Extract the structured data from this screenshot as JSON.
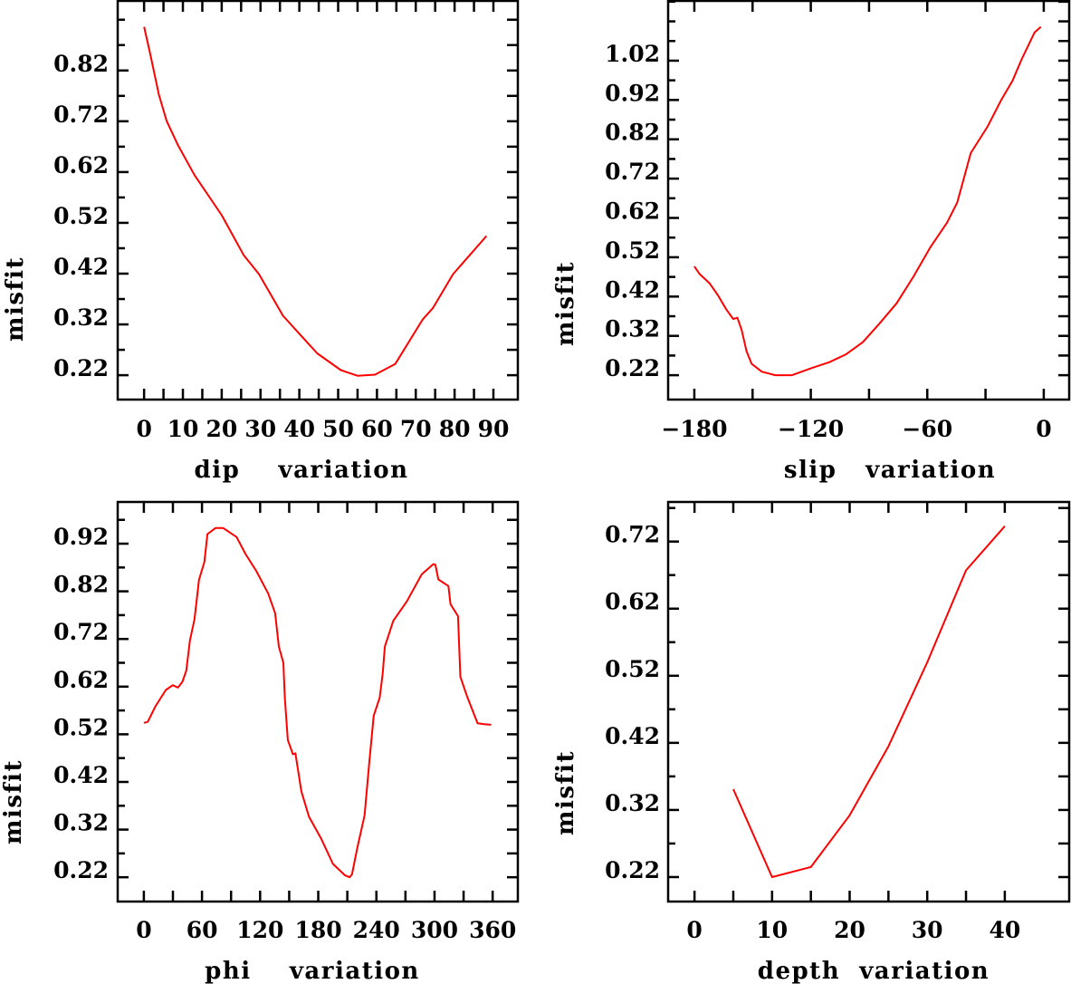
{
  "chart_data": [
    {
      "type": "line",
      "id": "dip",
      "xlabel": "dip    variation",
      "ylabel": "misfit",
      "xlim": [
        -6.8,
        96.3
      ],
      "ylim": [
        0.172,
        0.957
      ],
      "xticks": [
        0,
        10,
        20,
        30,
        40,
        50,
        60,
        70,
        80,
        90
      ],
      "xtick_labels": [
        "0",
        "10",
        "20",
        "30",
        "40",
        "50",
        "60",
        "70",
        "80",
        "90"
      ],
      "xminor_step": 5,
      "yticks": [
        0.22,
        0.32,
        0.42,
        0.52,
        0.62,
        0.72,
        0.82
      ],
      "ytick_labels": [
        "0.22",
        "0.32",
        "0.42",
        "0.52",
        "0.62",
        "0.72",
        "0.82"
      ],
      "yminor_step": 0.05,
      "line_color": "#ff0000",
      "x": [
        0,
        1.6,
        3.8,
        5.8,
        8.6,
        13,
        20,
        25.7,
        29.6,
        35.8,
        40.2,
        44.6,
        50.7,
        55,
        59.5,
        64.7,
        71.8,
        74.4,
        79.6,
        88.2
      ],
      "y": [
        0.906,
        0.852,
        0.773,
        0.721,
        0.675,
        0.614,
        0.535,
        0.456,
        0.419,
        0.337,
        0.3,
        0.263,
        0.23,
        0.219,
        0.221,
        0.242,
        0.33,
        0.352,
        0.419,
        0.494
      ]
    },
    {
      "type": "line",
      "id": "slip",
      "xlabel": "slip   variation",
      "ylabel": "misfit",
      "xlim": [
        -193.5,
        13.1
      ],
      "ylim": [
        0.158,
        1.172
      ],
      "xticks": [
        -180,
        -120,
        -60,
        0
      ],
      "xtick_labels": [
        "−180",
        "−120",
        "−60",
        "0"
      ],
      "xminor_step": 30,
      "yticks": [
        0.22,
        0.32,
        0.42,
        0.52,
        0.62,
        0.72,
        0.82,
        0.92,
        1.02
      ],
      "ytick_labels": [
        "0.22",
        "0.32",
        "0.42",
        "0.52",
        "0.62",
        "0.72",
        "0.82",
        "0.92",
        "1.02"
      ],
      "yminor_step": 0.05,
      "line_color": "#ff0000",
      "x": [
        -180,
        -177.4,
        -172.2,
        -167.8,
        -163.5,
        -160,
        -157.8,
        -155.7,
        -153.1,
        -150.5,
        -145.3,
        -138.3,
        -129.7,
        -119.2,
        -110.6,
        -101.9,
        -93.2,
        -84.5,
        -75.8,
        -67.2,
        -58.5,
        -49.8,
        -44.6,
        -41.1,
        -37.6,
        -29,
        -22,
        -16,
        -11.6,
        -4.7,
        -1.5
      ],
      "y": [
        0.497,
        0.478,
        0.454,
        0.423,
        0.387,
        0.363,
        0.366,
        0.336,
        0.281,
        0.249,
        0.229,
        0.22,
        0.22,
        0.239,
        0.253,
        0.273,
        0.304,
        0.352,
        0.403,
        0.47,
        0.545,
        0.608,
        0.659,
        0.722,
        0.785,
        0.852,
        0.919,
        0.97,
        1.021,
        1.092,
        1.106
      ]
    },
    {
      "type": "line",
      "id": "phi",
      "xlabel": "phi    variation",
      "ylabel": "misfit",
      "xlim": [
        -27,
        386
      ],
      "ylim": [
        0.169,
        1.0075
      ],
      "xticks": [
        0,
        60,
        120,
        180,
        240,
        300,
        360
      ],
      "xtick_labels": [
        "0",
        "60",
        "120",
        "180",
        "240",
        "300",
        "360"
      ],
      "xminor_step": 30,
      "yticks": [
        0.22,
        0.32,
        0.42,
        0.52,
        0.62,
        0.72,
        0.82,
        0.92
      ],
      "ytick_labels": [
        "0.22",
        "0.32",
        "0.42",
        "0.52",
        "0.62",
        "0.72",
        "0.82",
        "0.92"
      ],
      "yminor_step": 0.05,
      "line_color": "#ff0000",
      "x": [
        0,
        4,
        11.8,
        22.7,
        29.8,
        35.1,
        39.8,
        43.8,
        47.6,
        52.2,
        56.9,
        62.5,
        65.6,
        74,
        81.8,
        95.7,
        105,
        116,
        128.4,
        135.5,
        139.3,
        144,
        145.5,
        148.6,
        153.9,
        156.4,
        162.6,
        170.4,
        182.8,
        195.2,
        207.6,
        212.3,
        214.8,
        220.1,
        227.8,
        232.5,
        237.2,
        243.4,
        246.5,
        248.7,
        257.4,
        271.4,
        286.9,
        298.7,
        300.9,
        304,
        314.3,
        316.5,
        324.2,
        326.7,
        333.5,
        344.4,
        352.2,
        358.4
      ],
      "y": [
        0.544,
        0.546,
        0.578,
        0.613,
        0.623,
        0.618,
        0.63,
        0.654,
        0.717,
        0.761,
        0.844,
        0.882,
        0.94,
        0.953,
        0.953,
        0.934,
        0.898,
        0.863,
        0.815,
        0.774,
        0.704,
        0.67,
        0.597,
        0.508,
        0.478,
        0.48,
        0.4,
        0.347,
        0.302,
        0.248,
        0.224,
        0.22,
        0.226,
        0.28,
        0.35,
        0.457,
        0.559,
        0.597,
        0.647,
        0.704,
        0.758,
        0.799,
        0.856,
        0.877,
        0.876,
        0.845,
        0.831,
        0.793,
        0.768,
        0.641,
        0.6,
        0.543,
        0.541,
        0.54
      ]
    },
    {
      "type": "line",
      "id": "depth",
      "xlabel": "depth  variation",
      "ylabel": "misfit",
      "xlim": [
        -3.4,
        48.3
      ],
      "ylim": [
        0.1835,
        0.779
      ],
      "xticks": [
        0,
        10,
        20,
        30,
        40
      ],
      "xtick_labels": [
        "0",
        "10",
        "20",
        "30",
        "40"
      ],
      "xminor_step": 5,
      "yticks": [
        0.22,
        0.32,
        0.42,
        0.52,
        0.62,
        0.72
      ],
      "ytick_labels": [
        "0.22",
        "0.32",
        "0.42",
        "0.52",
        "0.62",
        "0.72"
      ],
      "yminor_step": 0.05,
      "line_color": "#ff0000",
      "x": [
        5,
        10,
        15,
        20,
        25,
        30,
        35,
        40
      ],
      "y": [
        0.351,
        0.22,
        0.235,
        0.312,
        0.415,
        0.54,
        0.677,
        0.743
      ]
    }
  ]
}
